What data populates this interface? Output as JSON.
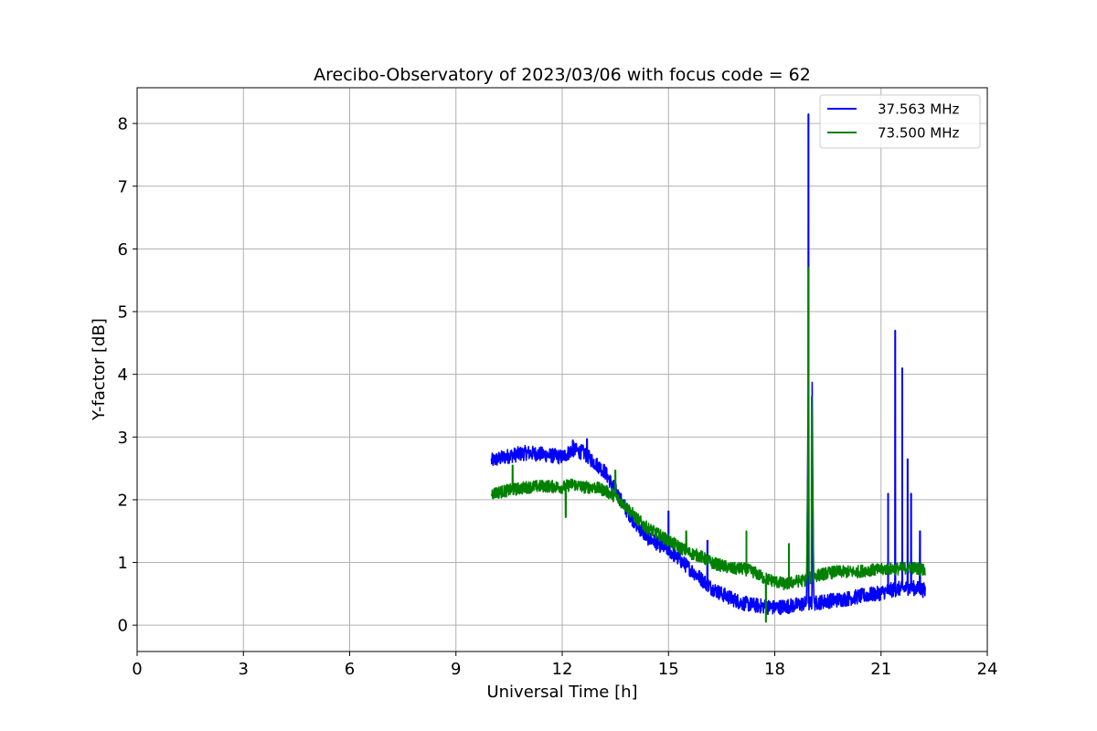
{
  "chart_data": {
    "type": "line",
    "title": "Arecibo-Observatory of 2023/03/06 with focus code = 62",
    "xlabel": "Universal Time [h]",
    "ylabel": "Y-factor [dB]",
    "xlim": [
      0,
      24
    ],
    "ylim": [
      -0.42,
      8.57
    ],
    "xticks": [
      0,
      3,
      6,
      9,
      12,
      15,
      18,
      21,
      24
    ],
    "yticks": [
      0,
      1,
      2,
      3,
      4,
      5,
      6,
      7,
      8
    ],
    "grid": true,
    "legend_position": "upper-right",
    "series": [
      {
        "name": "37.563 MHz",
        "color": "#0000ff",
        "x": [
          10.0,
          10.5,
          11.0,
          11.5,
          12.0,
          12.3,
          12.6,
          12.9,
          13.2,
          13.5,
          13.8,
          14.1,
          14.4,
          14.7,
          15.0,
          15.3,
          15.6,
          15.9,
          16.2,
          16.5,
          16.8,
          17.1,
          17.4,
          17.7,
          18.0,
          18.3,
          18.6,
          18.9,
          19.0,
          19.1,
          19.4,
          19.7,
          20.0,
          20.3,
          20.6,
          20.9,
          21.2,
          21.5,
          21.8,
          22.1,
          22.25
        ],
        "y": [
          2.62,
          2.7,
          2.75,
          2.72,
          2.68,
          2.8,
          2.75,
          2.6,
          2.45,
          2.15,
          1.85,
          1.6,
          1.4,
          1.3,
          1.2,
          1.05,
          0.9,
          0.75,
          0.6,
          0.5,
          0.42,
          0.35,
          0.32,
          0.3,
          0.28,
          0.3,
          0.32,
          0.35,
          8.1,
          0.35,
          0.38,
          0.4,
          0.42,
          0.45,
          0.48,
          0.5,
          0.55,
          0.58,
          0.6,
          0.58,
          0.55
        ],
        "spikes": [
          {
            "x": 12.3,
            "y": 2.95
          },
          {
            "x": 12.7,
            "y": 2.97
          },
          {
            "x": 15.0,
            "y": 1.82
          },
          {
            "x": 16.1,
            "y": 1.35
          },
          {
            "x": 18.95,
            "y": 8.15
          },
          {
            "x": 21.2,
            "y": 2.1
          },
          {
            "x": 21.4,
            "y": 4.7
          },
          {
            "x": 21.6,
            "y": 4.1
          },
          {
            "x": 21.75,
            "y": 2.65
          },
          {
            "x": 21.85,
            "y": 2.1
          },
          {
            "x": 22.1,
            "y": 1.5
          }
        ],
        "noise": 0.12
      },
      {
        "name": "73.500 MHz",
        "color": "#008000",
        "x": [
          10.0,
          10.5,
          11.0,
          11.5,
          12.0,
          12.3,
          12.6,
          12.9,
          13.2,
          13.5,
          13.8,
          14.1,
          14.4,
          14.7,
          15.0,
          15.3,
          15.6,
          15.9,
          16.2,
          16.5,
          16.8,
          17.1,
          17.4,
          17.7,
          18.0,
          18.3,
          18.6,
          18.9,
          19.0,
          19.1,
          19.4,
          19.7,
          20.0,
          20.3,
          20.6,
          20.9,
          21.2,
          21.5,
          21.8,
          22.1,
          22.25
        ],
        "y": [
          2.1,
          2.15,
          2.2,
          2.22,
          2.2,
          2.25,
          2.2,
          2.2,
          2.15,
          2.05,
          1.9,
          1.7,
          1.55,
          1.45,
          1.35,
          1.25,
          1.15,
          1.1,
          1.0,
          0.95,
          0.9,
          0.9,
          0.85,
          0.75,
          0.7,
          0.65,
          0.7,
          0.72,
          5.6,
          0.78,
          0.82,
          0.85,
          0.85,
          0.85,
          0.88,
          0.88,
          0.9,
          0.9,
          0.92,
          0.9,
          0.88
        ],
        "spikes": [
          {
            "x": 10.6,
            "y": 2.55
          },
          {
            "x": 12.1,
            "y": 1.72
          },
          {
            "x": 13.5,
            "y": 2.47
          },
          {
            "x": 15.5,
            "y": 1.5
          },
          {
            "x": 17.2,
            "y": 1.5
          },
          {
            "x": 17.75,
            "y": 0.05
          },
          {
            "x": 18.4,
            "y": 1.3
          },
          {
            "x": 18.95,
            "y": 5.7
          }
        ],
        "noise": 0.1
      }
    ]
  }
}
